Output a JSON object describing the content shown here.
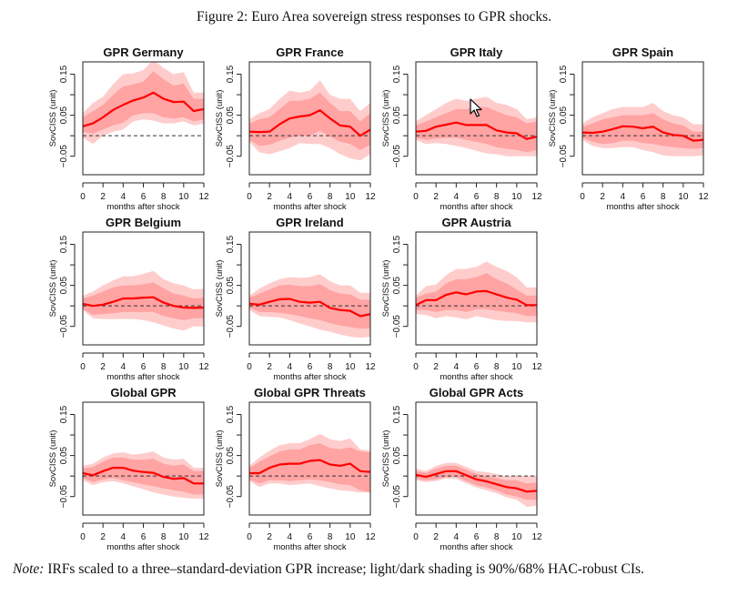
{
  "figure": {
    "title": "Figure 2: Euro Area sovereign stress responses to GPR shocks.",
    "note_label": "Note:",
    "note_text": " IRFs scaled to a three–standard-deviation GPR increase; light/dark shading is 90%/68% HAC-robust CIs."
  },
  "colors": {
    "ci90": "#ffcccc",
    "ci68": "#ffa3a3",
    "line": "#ff0000",
    "zero_line": "#333333",
    "axis": "#222222"
  },
  "chart_data": [
    {
      "type": "line",
      "title": "GPR Germany",
      "xlabel": "months after shock",
      "ylabel": "SovCISS (unit)",
      "x": [
        0,
        1,
        2,
        3,
        4,
        5,
        6,
        7,
        8,
        9,
        10,
        11,
        12
      ],
      "xticks": [
        0,
        2,
        4,
        6,
        8,
        10,
        12
      ],
      "yticks": [
        -0.05,
        0.0,
        0.05,
        0.1,
        0.15
      ],
      "ytick_labels": [
        "-0.05",
        "",
        "0.05",
        "",
        "0.15"
      ],
      "ylim": [
        -0.095,
        0.18
      ],
      "xlim": [
        0,
        12
      ],
      "irf": [
        0.023,
        0.03,
        0.045,
        0.063,
        0.075,
        0.086,
        0.093,
        0.105,
        0.09,
        0.082,
        0.083,
        0.06,
        0.065
      ],
      "ci68_upper": [
        0.045,
        0.06,
        0.075,
        0.1,
        0.12,
        0.125,
        0.132,
        0.157,
        0.138,
        0.122,
        0.127,
        0.09,
        0.09
      ],
      "ci68_lower": [
        0.01,
        0.005,
        0.015,
        0.025,
        0.032,
        0.05,
        0.055,
        0.055,
        0.045,
        0.042,
        0.045,
        0.035,
        0.04
      ],
      "ci90_upper": [
        0.055,
        0.08,
        0.095,
        0.125,
        0.15,
        0.152,
        0.16,
        0.185,
        0.165,
        0.15,
        0.155,
        0.105,
        0.105
      ],
      "ci90_lower": [
        -0.005,
        -0.02,
        0.0,
        0.01,
        0.015,
        0.035,
        0.04,
        0.037,
        0.03,
        0.03,
        0.035,
        0.025,
        0.03
      ]
    },
    {
      "type": "line",
      "title": "GPR France",
      "xlabel": "months after shock",
      "ylabel": "SovCISS (unit)",
      "x": [
        0,
        1,
        2,
        3,
        4,
        5,
        6,
        7,
        8,
        9,
        10,
        11,
        12
      ],
      "xticks": [
        0,
        2,
        4,
        6,
        8,
        10,
        12
      ],
      "yticks": [
        -0.05,
        0.0,
        0.05,
        0.1,
        0.15
      ],
      "ytick_labels": [
        "-0.05",
        "",
        "0.05",
        "",
        "0.15"
      ],
      "ylim": [
        -0.095,
        0.18
      ],
      "xlim": [
        0,
        12
      ],
      "irf": [
        0.01,
        0.009,
        0.01,
        0.028,
        0.042,
        0.047,
        0.05,
        0.062,
        0.042,
        0.025,
        0.022,
        0.0,
        0.015
      ],
      "ci68_upper": [
        0.03,
        0.04,
        0.045,
        0.065,
        0.085,
        0.085,
        0.09,
        0.105,
        0.08,
        0.06,
        0.06,
        0.035,
        0.055
      ],
      "ci68_lower": [
        -0.01,
        -0.025,
        -0.022,
        -0.012,
        -0.005,
        0.0,
        0.0,
        0.012,
        -0.002,
        -0.015,
        -0.02,
        -0.035,
        -0.022
      ],
      "ci90_upper": [
        0.04,
        0.055,
        0.065,
        0.09,
        0.11,
        0.105,
        0.11,
        0.135,
        0.1,
        0.09,
        0.09,
        0.06,
        0.08
      ],
      "ci90_lower": [
        -0.015,
        -0.04,
        -0.045,
        -0.038,
        -0.03,
        -0.018,
        -0.02,
        -0.02,
        -0.03,
        -0.045,
        -0.055,
        -0.06,
        -0.045
      ]
    },
    {
      "type": "line",
      "title": "GPR Italy",
      "xlabel": "months after shock",
      "ylabel": "SovCISS (unit)",
      "x": [
        0,
        1,
        2,
        3,
        4,
        5,
        6,
        7,
        8,
        9,
        10,
        11,
        12
      ],
      "xticks": [
        0,
        2,
        4,
        6,
        8,
        10,
        12
      ],
      "yticks": [
        -0.05,
        0.0,
        0.05,
        0.1,
        0.15
      ],
      "ytick_labels": [
        "-0.05",
        "",
        "0.05",
        "",
        "0.15"
      ],
      "ylim": [
        -0.095,
        0.18
      ],
      "xlim": [
        0,
        12
      ],
      "irf": [
        0.01,
        0.012,
        0.022,
        0.027,
        0.032,
        0.026,
        0.026,
        0.026,
        0.013,
        0.008,
        0.006,
        -0.008,
        -0.002
      ],
      "ci68_upper": [
        0.025,
        0.035,
        0.045,
        0.055,
        0.065,
        0.065,
        0.07,
        0.07,
        0.06,
        0.05,
        0.045,
        0.03,
        0.035
      ],
      "ci68_lower": [
        -0.005,
        -0.01,
        -0.007,
        -0.005,
        -0.005,
        -0.01,
        -0.015,
        -0.02,
        -0.028,
        -0.032,
        -0.035,
        -0.04,
        -0.035
      ],
      "ci90_upper": [
        0.035,
        0.05,
        0.065,
        0.08,
        0.09,
        0.085,
        0.09,
        0.095,
        0.08,
        0.075,
        0.065,
        0.04,
        0.045
      ],
      "ci90_lower": [
        -0.01,
        -0.02,
        -0.018,
        -0.02,
        -0.025,
        -0.03,
        -0.037,
        -0.043,
        -0.045,
        -0.05,
        -0.05,
        -0.05,
        -0.05
      ]
    },
    {
      "type": "line",
      "title": "GPR Spain",
      "xlabel": "months after shock",
      "ylabel": "SovCISS (unit)",
      "x": [
        0,
        1,
        2,
        3,
        4,
        5,
        6,
        7,
        8,
        9,
        10,
        11,
        12
      ],
      "xticks": [
        0,
        2,
        4,
        6,
        8,
        10,
        12
      ],
      "yticks": [
        -0.05,
        0.0,
        0.05,
        0.1,
        0.15
      ],
      "ytick_labels": [
        "-0.05",
        "",
        "0.05",
        "",
        "0.15"
      ],
      "ylim": [
        -0.095,
        0.18
      ],
      "xlim": [
        0,
        12
      ],
      "irf": [
        0.008,
        0.007,
        0.01,
        0.016,
        0.023,
        0.022,
        0.018,
        0.022,
        0.008,
        0.002,
        0.0,
        -0.012,
        -0.01
      ],
      "ci68_upper": [
        0.022,
        0.03,
        0.04,
        0.045,
        0.05,
        0.05,
        0.05,
        0.055,
        0.04,
        0.03,
        0.025,
        0.01,
        0.01
      ],
      "ci68_lower": [
        -0.005,
        -0.015,
        -0.02,
        -0.018,
        -0.012,
        -0.012,
        -0.018,
        -0.02,
        -0.025,
        -0.028,
        -0.03,
        -0.032,
        -0.03
      ],
      "ci90_upper": [
        0.03,
        0.045,
        0.055,
        0.065,
        0.07,
        0.07,
        0.07,
        0.08,
        0.06,
        0.05,
        0.045,
        0.028,
        0.028
      ],
      "ci90_lower": [
        -0.01,
        -0.025,
        -0.03,
        -0.03,
        -0.028,
        -0.028,
        -0.035,
        -0.04,
        -0.048,
        -0.05,
        -0.05,
        -0.05,
        -0.048
      ]
    },
    {
      "type": "line",
      "title": "GPR Belgium",
      "xlabel": "months after shock",
      "ylabel": "SovCISS (unit)",
      "x": [
        0,
        1,
        2,
        3,
        4,
        5,
        6,
        7,
        8,
        9,
        10,
        11,
        12
      ],
      "xticks": [
        0,
        2,
        4,
        6,
        8,
        10,
        12
      ],
      "yticks": [
        -0.05,
        0.0,
        0.05,
        0.1,
        0.15
      ],
      "ytick_labels": [
        "-0.05",
        "",
        "0.05",
        "",
        "0.15"
      ],
      "ylim": [
        -0.095,
        0.18
      ],
      "xlim": [
        0,
        12
      ],
      "irf": [
        0.005,
        0.0,
        0.003,
        0.01,
        0.018,
        0.018,
        0.02,
        0.021,
        0.008,
        0.0,
        -0.004,
        -0.005,
        -0.004
      ],
      "ci68_upper": [
        0.018,
        0.025,
        0.035,
        0.045,
        0.05,
        0.05,
        0.053,
        0.057,
        0.043,
        0.03,
        0.025,
        0.018,
        0.02
      ],
      "ci68_lower": [
        -0.008,
        -0.022,
        -0.02,
        -0.018,
        -0.015,
        -0.015,
        -0.015,
        -0.015,
        -0.025,
        -0.03,
        -0.035,
        -0.03,
        -0.03
      ],
      "ci90_upper": [
        0.025,
        0.035,
        0.05,
        0.062,
        0.072,
        0.072,
        0.078,
        0.085,
        0.065,
        0.055,
        0.05,
        0.04,
        0.042
      ],
      "ci90_lower": [
        -0.01,
        -0.03,
        -0.032,
        -0.032,
        -0.032,
        -0.032,
        -0.035,
        -0.04,
        -0.048,
        -0.055,
        -0.06,
        -0.05,
        -0.05
      ]
    },
    {
      "type": "line",
      "title": "GPR Ireland",
      "xlabel": "months after shock",
      "ylabel": "SovCISS (unit)",
      "x": [
        0,
        1,
        2,
        3,
        4,
        5,
        6,
        7,
        8,
        9,
        10,
        11,
        12
      ],
      "xticks": [
        0,
        2,
        4,
        6,
        8,
        10,
        12
      ],
      "yticks": [
        -0.05,
        0.0,
        0.05,
        0.1,
        0.15
      ],
      "ytick_labels": [
        "-0.05",
        "",
        "0.05",
        "",
        "0.15"
      ],
      "ylim": [
        -0.095,
        0.18
      ],
      "xlim": [
        0,
        12
      ],
      "irf": [
        0.005,
        0.003,
        0.01,
        0.016,
        0.017,
        0.01,
        0.008,
        0.01,
        -0.005,
        -0.01,
        -0.012,
        -0.025,
        -0.02
      ],
      "ci68_upper": [
        0.02,
        0.03,
        0.04,
        0.05,
        0.052,
        0.048,
        0.048,
        0.053,
        0.038,
        0.03,
        0.028,
        0.015,
        0.015
      ],
      "ci68_lower": [
        -0.005,
        -0.015,
        -0.015,
        -0.017,
        -0.02,
        -0.025,
        -0.03,
        -0.035,
        -0.042,
        -0.048,
        -0.052,
        -0.055,
        -0.055
      ],
      "ci90_upper": [
        0.025,
        0.042,
        0.055,
        0.065,
        0.07,
        0.068,
        0.07,
        0.077,
        0.06,
        0.05,
        0.05,
        0.032,
        0.032
      ],
      "ci90_lower": [
        -0.01,
        -0.025,
        -0.027,
        -0.028,
        -0.035,
        -0.043,
        -0.05,
        -0.058,
        -0.063,
        -0.07,
        -0.075,
        -0.078,
        -0.075
      ]
    },
    {
      "type": "line",
      "title": "GPR Austria",
      "xlabel": "months after shock",
      "ylabel": "SovCISS (unit)",
      "x": [
        0,
        1,
        2,
        3,
        4,
        5,
        6,
        7,
        8,
        9,
        10,
        11,
        12
      ],
      "xticks": [
        0,
        2,
        4,
        6,
        8,
        10,
        12
      ],
      "yticks": [
        -0.05,
        0.0,
        0.05,
        0.1,
        0.15
      ],
      "ytick_labels": [
        "-0.05",
        "",
        "0.05",
        "",
        "0.15"
      ],
      "ylim": [
        -0.095,
        0.18
      ],
      "xlim": [
        0,
        12
      ],
      "irf": [
        0.002,
        0.014,
        0.014,
        0.027,
        0.033,
        0.028,
        0.035,
        0.036,
        0.028,
        0.02,
        0.015,
        0.002,
        0.002
      ],
      "ci68_upper": [
        0.02,
        0.03,
        0.035,
        0.055,
        0.065,
        0.065,
        0.07,
        0.08,
        0.065,
        0.055,
        0.04,
        0.025,
        0.025
      ],
      "ci68_lower": [
        -0.01,
        -0.01,
        -0.015,
        -0.01,
        -0.01,
        -0.015,
        -0.008,
        -0.008,
        -0.012,
        -0.015,
        -0.018,
        -0.025,
        -0.025
      ],
      "ci90_upper": [
        0.025,
        0.048,
        0.052,
        0.075,
        0.09,
        0.09,
        0.095,
        0.108,
        0.095,
        0.085,
        0.07,
        0.045,
        0.045
      ],
      "ci90_lower": [
        -0.02,
        -0.022,
        -0.03,
        -0.025,
        -0.028,
        -0.033,
        -0.025,
        -0.03,
        -0.035,
        -0.037,
        -0.037,
        -0.04,
        -0.04
      ]
    },
    {
      "type": "line",
      "title": "Global GPR",
      "xlabel": "months after shock",
      "ylabel": "SovCISS (unit)",
      "x": [
        0,
        1,
        2,
        3,
        4,
        5,
        6,
        7,
        8,
        9,
        10,
        11,
        12
      ],
      "xticks": [
        0,
        2,
        4,
        6,
        8,
        10,
        12
      ],
      "yticks": [
        -0.05,
        0.0,
        0.05,
        0.1,
        0.15
      ],
      "ytick_labels": [
        "-0.05",
        "",
        "0.05",
        "",
        "0.15"
      ],
      "ylim": [
        -0.095,
        0.18
      ],
      "xlim": [
        0,
        12
      ],
      "irf": [
        0.007,
        0.002,
        0.012,
        0.02,
        0.02,
        0.013,
        0.01,
        0.008,
        -0.002,
        -0.007,
        -0.005,
        -0.018,
        -0.018
      ],
      "ci68_upper": [
        0.018,
        0.022,
        0.035,
        0.045,
        0.045,
        0.04,
        0.04,
        0.042,
        0.03,
        0.025,
        0.028,
        0.012,
        0.012
      ],
      "ci68_lower": [
        -0.005,
        -0.015,
        -0.008,
        -0.005,
        -0.01,
        -0.015,
        -0.02,
        -0.025,
        -0.03,
        -0.035,
        -0.038,
        -0.045,
        -0.045
      ],
      "ci90_upper": [
        0.025,
        0.03,
        0.045,
        0.055,
        0.058,
        0.052,
        0.055,
        0.06,
        0.045,
        0.04,
        0.042,
        0.02,
        0.02
      ],
      "ci90_lower": [
        -0.01,
        -0.022,
        -0.015,
        -0.012,
        -0.018,
        -0.025,
        -0.032,
        -0.04,
        -0.045,
        -0.05,
        -0.053,
        -0.055,
        -0.055
      ]
    },
    {
      "type": "line",
      "title": "Global GPR Threats",
      "xlabel": "months after shock",
      "ylabel": "SovCISS (unit)",
      "x": [
        0,
        1,
        2,
        3,
        4,
        5,
        6,
        7,
        8,
        9,
        10,
        11,
        12
      ],
      "xticks": [
        0,
        2,
        4,
        6,
        8,
        10,
        12
      ],
      "yticks": [
        -0.05,
        0.0,
        0.05,
        0.1,
        0.15
      ],
      "ytick_labels": [
        "-0.05",
        "",
        "0.05",
        "",
        "0.15"
      ],
      "ylim": [
        -0.095,
        0.18
      ],
      "xlim": [
        0,
        12
      ],
      "irf": [
        0.007,
        0.007,
        0.02,
        0.028,
        0.03,
        0.03,
        0.037,
        0.039,
        0.028,
        0.025,
        0.03,
        0.012,
        0.01
      ],
      "ci68_upper": [
        0.02,
        0.035,
        0.048,
        0.06,
        0.065,
        0.065,
        0.075,
        0.08,
        0.068,
        0.065,
        0.07,
        0.06,
        0.058
      ],
      "ci68_lower": [
        -0.008,
        -0.018,
        -0.01,
        -0.01,
        -0.012,
        -0.01,
        -0.008,
        -0.01,
        -0.015,
        -0.02,
        -0.022,
        -0.035,
        -0.04
      ],
      "ci90_upper": [
        0.025,
        0.045,
        0.062,
        0.075,
        0.08,
        0.08,
        0.09,
        0.103,
        0.09,
        0.085,
        0.092,
        0.065,
        0.062
      ],
      "ci90_lower": [
        -0.012,
        -0.027,
        -0.018,
        -0.018,
        -0.022,
        -0.02,
        -0.018,
        -0.025,
        -0.03,
        -0.035,
        -0.037,
        -0.04,
        -0.04
      ]
    },
    {
      "type": "line",
      "title": "Global GPR Acts",
      "xlabel": "months after shock",
      "ylabel": "SovCISS (unit)",
      "x": [
        0,
        1,
        2,
        3,
        4,
        5,
        6,
        7,
        8,
        9,
        10,
        11,
        12
      ],
      "xticks": [
        0,
        2,
        4,
        6,
        8,
        10,
        12
      ],
      "yticks": [
        -0.05,
        0.0,
        0.05,
        0.1,
        0.15
      ],
      "ytick_labels": [
        "-0.05",
        "",
        "0.05",
        "",
        "0.15"
      ],
      "ylim": [
        -0.095,
        0.18
      ],
      "xlim": [
        0,
        12
      ],
      "irf": [
        0.003,
        -0.002,
        0.005,
        0.012,
        0.012,
        0.002,
        -0.008,
        -0.013,
        -0.02,
        -0.027,
        -0.03,
        -0.038,
        -0.036
      ],
      "ci68_upper": [
        0.012,
        0.008,
        0.018,
        0.025,
        0.025,
        0.015,
        0.005,
        0.0,
        -0.005,
        -0.01,
        -0.01,
        -0.018,
        -0.016
      ],
      "ci68_lower": [
        -0.006,
        -0.01,
        -0.008,
        -0.002,
        -0.002,
        -0.012,
        -0.022,
        -0.028,
        -0.035,
        -0.045,
        -0.05,
        -0.058,
        -0.058
      ],
      "ci90_upper": [
        0.018,
        0.012,
        0.025,
        0.032,
        0.032,
        0.022,
        0.012,
        0.01,
        0.005,
        0.0,
        0.002,
        0.0,
        0.002
      ],
      "ci90_lower": [
        -0.01,
        -0.015,
        -0.012,
        -0.006,
        -0.007,
        -0.018,
        -0.028,
        -0.035,
        -0.042,
        -0.052,
        -0.058,
        -0.075,
        -0.072
      ]
    }
  ]
}
